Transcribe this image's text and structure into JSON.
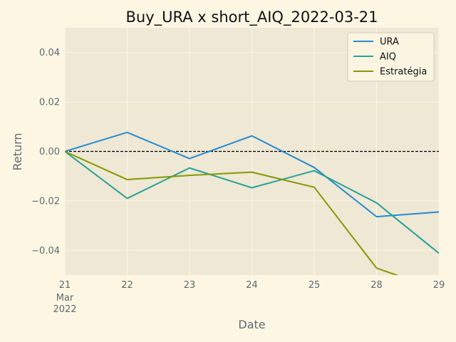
{
  "chart_data": {
    "type": "line",
    "title": "Buy_URA x short_AIQ_2022-03-21",
    "xlabel": "Date",
    "ylabel": "Return",
    "x": [
      "2022-03-21",
      "2022-03-22",
      "2022-03-23",
      "2022-03-24",
      "2022-03-25",
      "2022-03-28",
      "2022-03-29"
    ],
    "x_tick_labels": [
      {
        "day": "21",
        "month": "Mar",
        "year": "2022"
      },
      {
        "day": "22"
      },
      {
        "day": "23"
      },
      {
        "day": "24"
      },
      {
        "day": "25"
      },
      {
        "day": "28"
      },
      {
        "day": "29"
      }
    ],
    "ylim": [
      -0.05,
      0.05
    ],
    "y_ticks": [
      -0.04,
      -0.02,
      0.0,
      0.02,
      0.04
    ],
    "y_tick_labels": [
      "−0.04",
      "−0.02",
      "0.00",
      "0.02",
      "0.04"
    ],
    "grid": true,
    "legend_position": "top-right",
    "reference_line": {
      "y": 0.0,
      "style": "dashed",
      "color": "#000000"
    },
    "series": [
      {
        "name": "URA",
        "color": "#268bd2",
        "values": [
          0.0,
          0.0077,
          -0.0029,
          0.0063,
          -0.0065,
          -0.0264,
          -0.0245
        ]
      },
      {
        "name": "AIQ",
        "color": "#2aa198",
        "values": [
          0.0,
          -0.019,
          -0.0067,
          -0.0147,
          -0.0078,
          -0.0208,
          -0.0412
        ]
      },
      {
        "name": "Estratégia",
        "color": "#859900",
        "values": [
          0.0,
          -0.0114,
          -0.0097,
          -0.0084,
          -0.0145,
          -0.0472,
          -0.056
        ]
      }
    ]
  }
}
